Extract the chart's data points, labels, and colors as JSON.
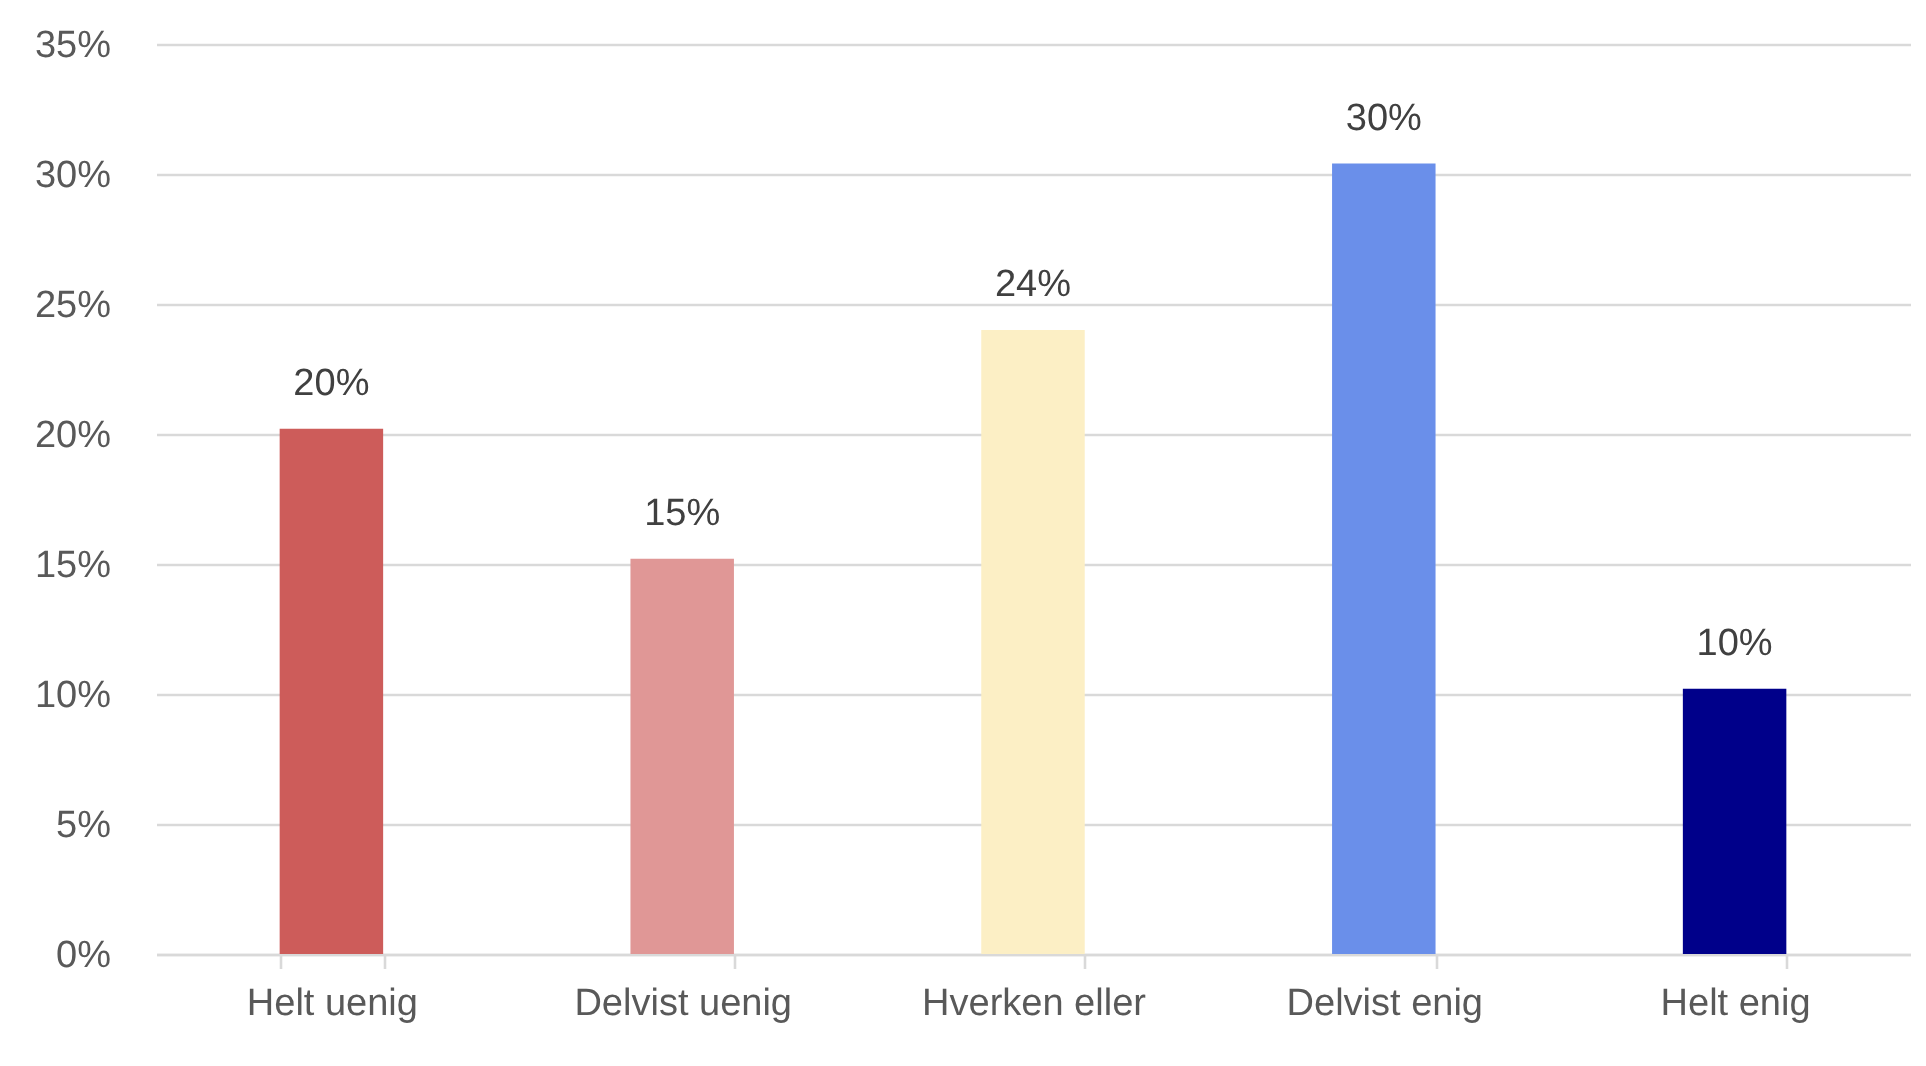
{
  "chart_data": {
    "type": "bar",
    "categories": [
      "Helt uenig",
      "Delvist uenig",
      "Hverken eller",
      "Delvist enig",
      "Helt enig"
    ],
    "values": [
      20.2,
      15.2,
      24,
      30.4,
      10.2
    ],
    "value_labels": [
      "20%",
      "15%",
      "24%",
      "30%",
      "10%"
    ],
    "colors": [
      "#cd5c5a",
      "#e09796",
      "#fcefc5",
      "#6a8fea",
      "#00008a"
    ],
    "ylim": [
      0,
      35
    ],
    "yticks": [
      {
        "value": 0,
        "label": "0%"
      },
      {
        "value": 5,
        "label": "5%"
      },
      {
        "value": 10,
        "label": "10%"
      },
      {
        "value": 15,
        "label": "15%"
      },
      {
        "value": 20,
        "label": "20%"
      },
      {
        "value": 25,
        "label": "25%"
      },
      {
        "value": 30,
        "label": "30%"
      },
      {
        "value": 35,
        "label": "35%"
      }
    ],
    "grid": "y"
  }
}
